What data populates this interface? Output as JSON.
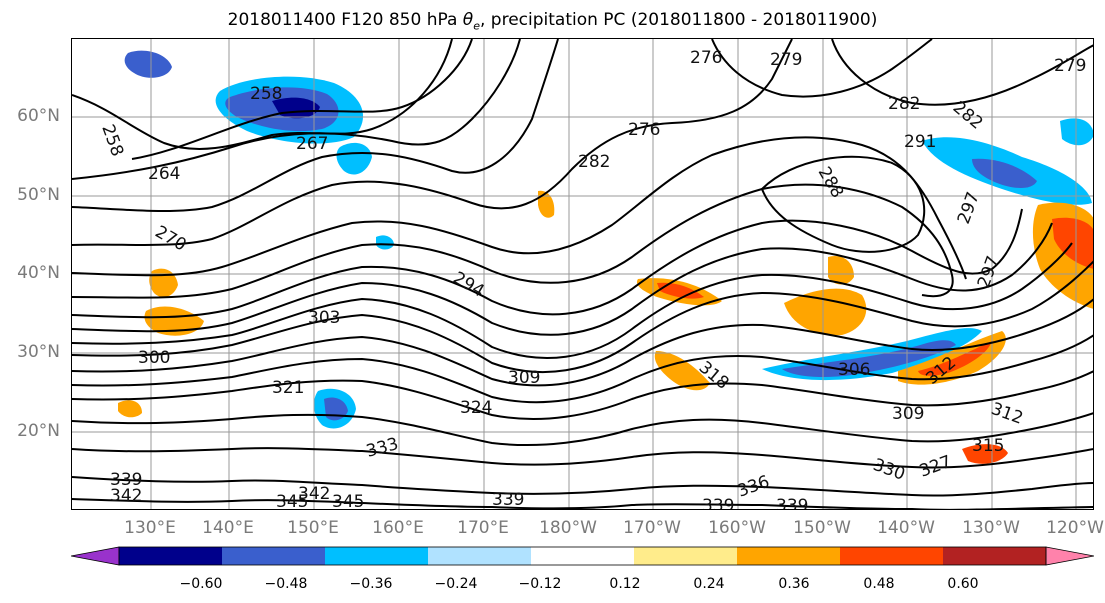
{
  "title": {
    "prefix": "2018011400 F120 850 hPa ",
    "theta": "θ",
    "theta_sub": "e",
    "suffix": ", precipitation PC (2018011800 - 2018011900)"
  },
  "map": {
    "latitude_labels": [
      "60°N",
      "50°N",
      "40°N",
      "30°N",
      "20°N"
    ],
    "longitude_labels": [
      "130°E",
      "140°E",
      "150°E",
      "160°E",
      "170°E",
      "180°W",
      "170°W",
      "160°W",
      "150°W",
      "140°W",
      "130°W",
      "120°W"
    ],
    "contour_labels": [
      "258",
      "258",
      "267",
      "264",
      "270",
      "276",
      "279",
      "276",
      "282",
      "282",
      "279",
      "282",
      "291",
      "288",
      "297",
      "297",
      "294",
      "303",
      "300",
      "309",
      "321",
      "324",
      "318",
      "306",
      "312",
      "309",
      "312",
      "315",
      "333",
      "339",
      "342",
      "345",
      "342",
      "345",
      "339",
      "339",
      "336",
      "339",
      "330",
      "327"
    ]
  },
  "colorbar": {
    "colors": [
      "#9932cc",
      "#00008b",
      "#3a5fcd",
      "#00bfff",
      "#b0e2ff",
      "#ffffff",
      "#ffec8b",
      "#ffa500",
      "#ff4500",
      "#b22222",
      "#ff82ab"
    ],
    "tick_labels": [
      "−0.60",
      "−0.48",
      "−0.36",
      "−0.24",
      "−0.12",
      "0.12",
      "0.24",
      "0.36",
      "0.48",
      "0.60"
    ]
  },
  "colors": {
    "contour": "#000000",
    "grid": "#999999",
    "axis_label": "#7a7a7a"
  }
}
